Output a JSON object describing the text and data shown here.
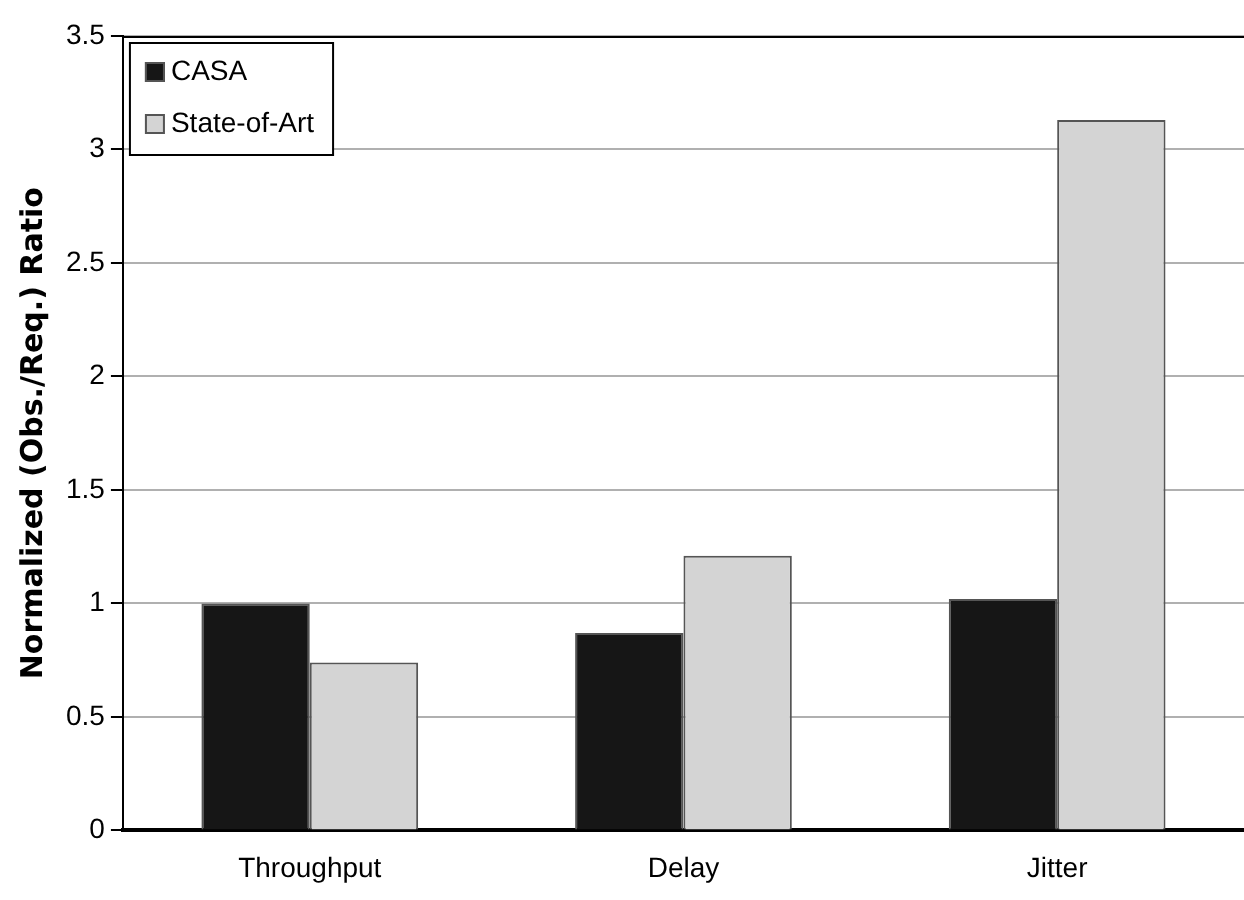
{
  "chart_data": {
    "type": "bar",
    "ylabel": "Normalized (Obs./Req.) Ratio",
    "categories": [
      "Throughput",
      "Delay",
      "Jitter"
    ],
    "series": [
      {
        "name": "CASA",
        "color": "#161616",
        "values": [
          1.0,
          0.87,
          1.02
        ]
      },
      {
        "name": "State-of-Art",
        "color": "#d4d4d4",
        "values": [
          0.74,
          1.21,
          3.13
        ]
      }
    ],
    "ylim": [
      0,
      3.5
    ],
    "yticks": [
      0,
      0.5,
      1,
      1.5,
      2,
      2.5,
      3,
      3.5
    ],
    "grid": "y",
    "legend": "top left"
  }
}
